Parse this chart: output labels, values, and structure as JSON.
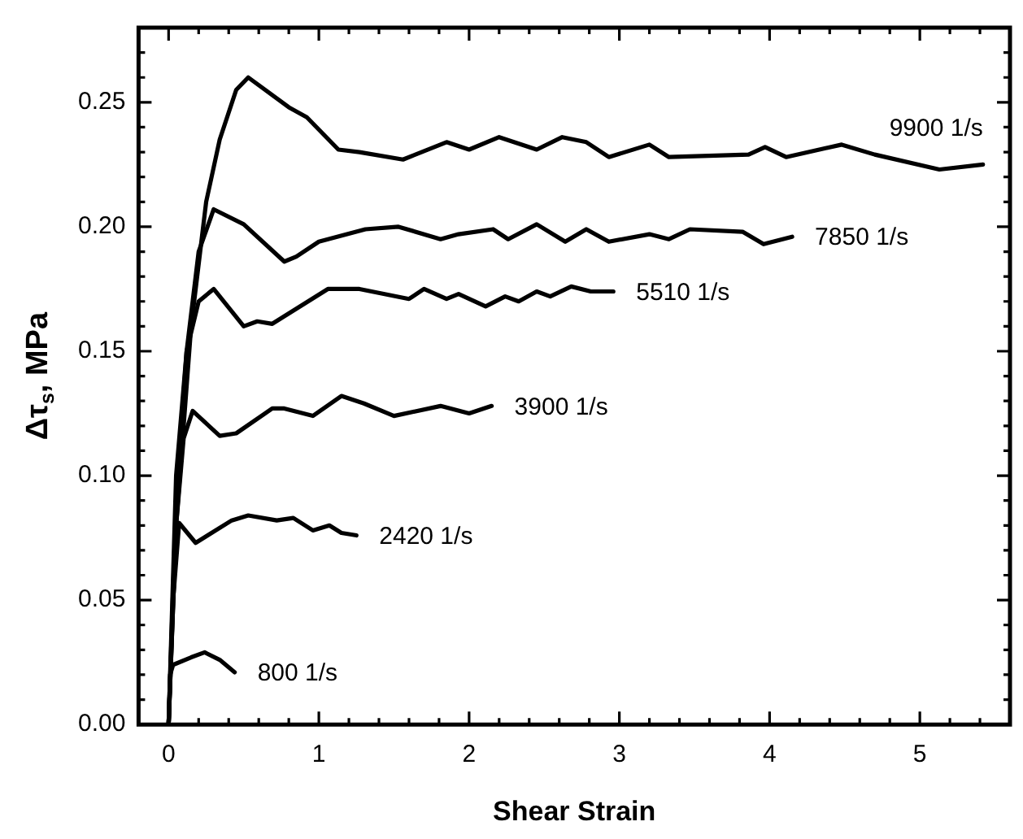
{
  "chart_data": {
    "type": "line",
    "xlabel": "Shear Strain",
    "ylabel": "Δτ$_{s}$, MPa",
    "marker": "none",
    "line_style": "solid",
    "xlim": [
      -0.2,
      5.6
    ],
    "ylim": [
      0,
      0.28
    ],
    "xticks": [
      {
        "value": -0.2,
        "label": null
      },
      0,
      {
        "value": 0.2,
        "label": null
      },
      {
        "value": 0.4,
        "label": null
      },
      {
        "value": 0.6,
        "label": null
      },
      {
        "value": 0.8,
        "label": null
      },
      1,
      {
        "value": 1.2,
        "label": null
      },
      {
        "value": 1.4,
        "label": null
      },
      {
        "value": 1.6,
        "label": null
      },
      {
        "value": 1.8,
        "label": null
      },
      2,
      {
        "value": 2.2,
        "label": null
      },
      {
        "value": 2.4,
        "label": null
      },
      {
        "value": 2.6,
        "label": null
      },
      {
        "value": 2.8,
        "label": null
      },
      3,
      {
        "value": 3.2,
        "label": null
      },
      {
        "value": 3.4,
        "label": null
      },
      {
        "value": 3.6,
        "label": null
      },
      {
        "value": 3.8,
        "label": null
      },
      4,
      {
        "value": 4.2,
        "label": null
      },
      {
        "value": 4.4,
        "label": null
      },
      {
        "value": 4.6,
        "label": null
      },
      {
        "value": 4.8,
        "label": null
      },
      5,
      {
        "value": 5.2,
        "label": null
      },
      {
        "value": 5.4,
        "label": null
      }
    ],
    "yticks": [
      {
        "value": 0,
        "label": "0.00"
      },
      {
        "value": 0.01,
        "label": null
      },
      {
        "value": 0.02,
        "label": null
      },
      {
        "value": 0.03,
        "label": null
      },
      {
        "value": 0.04,
        "label": null
      },
      {
        "value": 0.05,
        "label": "0.05"
      },
      {
        "value": 0.06,
        "label": null
      },
      {
        "value": 0.07,
        "label": null
      },
      {
        "value": 0.08,
        "label": null
      },
      {
        "value": 0.09,
        "label": null
      },
      {
        "value": 0.1,
        "label": "0.10"
      },
      {
        "value": 0.11,
        "label": null
      },
      {
        "value": 0.12,
        "label": null
      },
      {
        "value": 0.13,
        "label": null
      },
      {
        "value": 0.14,
        "label": null
      },
      {
        "value": 0.15,
        "label": "0.15"
      },
      {
        "value": 0.16,
        "label": null
      },
      {
        "value": 0.17,
        "label": null
      },
      {
        "value": 0.18,
        "label": null
      },
      {
        "value": 0.19,
        "label": null
      },
      {
        "value": 0.2,
        "label": "0.20"
      },
      {
        "value": 0.21,
        "label": null
      },
      {
        "value": 0.22,
        "label": null
      },
      {
        "value": 0.23,
        "label": null
      },
      {
        "value": 0.24,
        "label": null
      },
      {
        "value": 0.25,
        "label": "0.25"
      },
      {
        "value": 0.26,
        "label": null
      },
      {
        "value": 0.27,
        "label": null
      }
    ],
    "series": [
      {
        "name": "9900 1/s",
        "color": "#000000",
        "x": [
          0,
          0.05,
          0.15,
          0.25,
          0.34,
          0.45,
          0.53,
          0.8,
          0.92,
          1.13,
          1.27,
          1.56,
          1.85,
          2.0,
          2.2,
          2.45,
          2.62,
          2.78,
          2.93,
          3.2,
          3.33,
          3.86,
          3.97,
          4.11,
          4.48,
          4.7,
          5.13,
          5.42
        ],
        "values": [
          0,
          0.08,
          0.16,
          0.21,
          0.235,
          0.255,
          0.26,
          0.248,
          0.244,
          0.231,
          0.23,
          0.227,
          0.234,
          0.231,
          0.236,
          0.231,
          0.236,
          0.234,
          0.228,
          0.233,
          0.228,
          0.229,
          0.232,
          0.228,
          0.233,
          0.229,
          0.223,
          0.225
        ]
      },
      {
        "name": "7850 1/s",
        "color": "#000000",
        "x": [
          0,
          0.05,
          0.12,
          0.2,
          0.3,
          0.5,
          0.77,
          0.85,
          1.0,
          1.31,
          1.53,
          1.81,
          1.93,
          2.16,
          2.26,
          2.45,
          2.64,
          2.78,
          2.93,
          3.2,
          3.33,
          3.47,
          3.82,
          3.96,
          4.15
        ],
        "values": [
          0,
          0.09,
          0.15,
          0.19,
          0.207,
          0.201,
          0.186,
          0.188,
          0.194,
          0.199,
          0.2,
          0.195,
          0.197,
          0.199,
          0.195,
          0.201,
          0.194,
          0.199,
          0.194,
          0.197,
          0.195,
          0.199,
          0.198,
          0.193,
          0.196
        ]
      },
      {
        "name": "5510 1/s",
        "color": "#000000",
        "x": [
          0,
          0.05,
          0.12,
          0.2,
          0.3,
          0.5,
          0.59,
          0.69,
          1.06,
          1.27,
          1.6,
          1.7,
          1.85,
          1.93,
          2.11,
          2.24,
          2.33,
          2.45,
          2.54,
          2.68,
          2.81,
          2.96
        ],
        "values": [
          0,
          0.1,
          0.15,
          0.17,
          0.175,
          0.16,
          0.162,
          0.161,
          0.175,
          0.175,
          0.171,
          0.175,
          0.171,
          0.173,
          0.168,
          0.172,
          0.17,
          0.174,
          0.172,
          0.176,
          0.174,
          0.174
        ]
      },
      {
        "name": "3900 1/s",
        "color": "#000000",
        "x": [
          0,
          0.05,
          0.1,
          0.16,
          0.34,
          0.45,
          0.69,
          0.77,
          0.96,
          1.15,
          1.3,
          1.5,
          1.81,
          2.0,
          2.15
        ],
        "values": [
          0,
          0.08,
          0.115,
          0.126,
          0.116,
          0.117,
          0.127,
          0.127,
          0.124,
          0.132,
          0.129,
          0.124,
          0.128,
          0.125,
          0.128
        ]
      },
      {
        "name": "2420 1/s",
        "color": "#000000",
        "x": [
          0,
          0.03,
          0.07,
          0.18,
          0.42,
          0.53,
          0.72,
          0.83,
          0.96,
          1.07,
          1.15,
          1.25
        ],
        "values": [
          0,
          0.05,
          0.081,
          0.073,
          0.082,
          0.084,
          0.082,
          0.083,
          0.078,
          0.08,
          0.077,
          0.076
        ]
      },
      {
        "name": "800 1/s",
        "color": "#000000",
        "x": [
          0,
          0.01,
          0.03,
          0.15,
          0.24,
          0.34,
          0.44
        ],
        "values": [
          0,
          0.02,
          0.024,
          0.027,
          0.029,
          0.026,
          0.021
        ]
      }
    ]
  }
}
